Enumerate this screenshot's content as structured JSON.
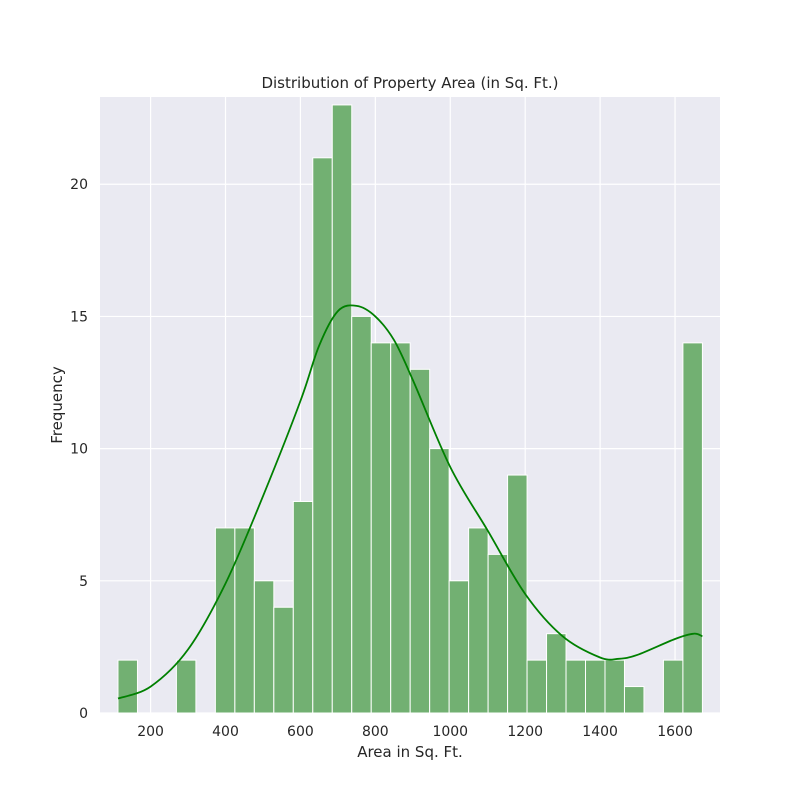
{
  "chart_data": {
    "type": "bar",
    "title": "Distribution of Property Area (in Sq. Ft.)",
    "xlabel": "Area in Sq. Ft.",
    "ylabel": "Frequency",
    "xlim": [
      65,
      1720
    ],
    "ylim": [
      0,
      23.3
    ],
    "xticks": [
      200,
      400,
      600,
      800,
      1000,
      1200,
      1400,
      1600
    ],
    "yticks": [
      0,
      5,
      10,
      15,
      20
    ],
    "grid": true,
    "bins": {
      "start": 113,
      "width": 52,
      "counts": [
        2,
        0,
        0,
        2,
        0,
        7,
        7,
        5,
        4,
        8,
        21,
        23,
        15,
        14,
        14,
        13,
        10,
        5,
        7,
        6,
        9,
        2,
        3,
        2,
        2,
        2,
        1,
        0,
        2,
        14
      ]
    },
    "kde": {
      "x": [
        113,
        200,
        300,
        400,
        500,
        600,
        650,
        700,
        750,
        800,
        850,
        900,
        1000,
        1100,
        1200,
        1300,
        1400,
        1450,
        1500,
        1600,
        1650,
        1673
      ],
      "y": [
        0.55,
        1.0,
        2.4,
        4.9,
        8.2,
        11.8,
        13.9,
        15.2,
        15.4,
        15.0,
        14.1,
        12.6,
        9.3,
        6.9,
        4.5,
        2.9,
        2.1,
        2.05,
        2.2,
        2.8,
        3.0,
        2.9
      ]
    },
    "colors": {
      "bar_fill": "#72b072",
      "bar_edge": "#ffffff",
      "kde_line": "#008000",
      "plot_bg": "#eaeaf2",
      "grid": "#ffffff"
    }
  }
}
